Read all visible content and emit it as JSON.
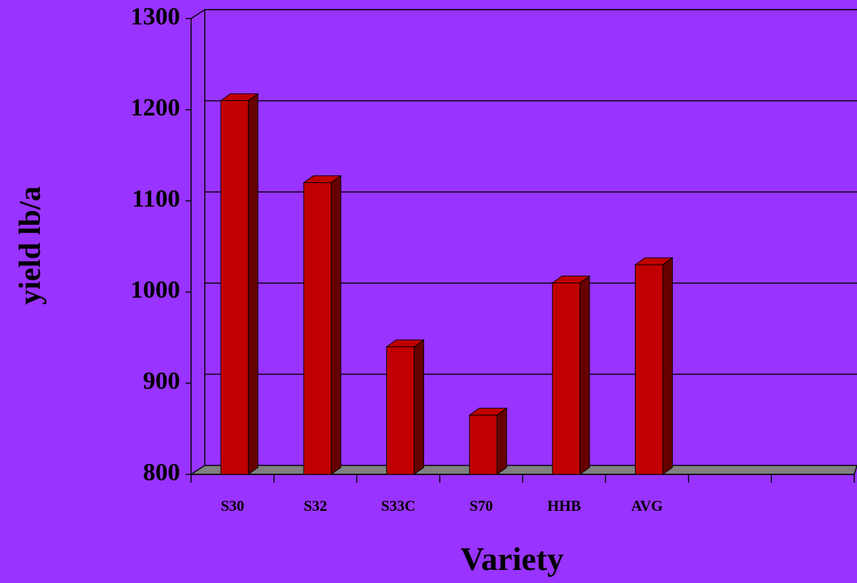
{
  "chart_data": {
    "type": "bar",
    "x_label": "Variety",
    "y_label": "yield lb/a",
    "categories": [
      "S30",
      "S32",
      "S33C",
      "S70",
      "HHB",
      "AVG",
      null,
      null
    ],
    "values": [
      1210,
      1120,
      940,
      865,
      1010,
      1030,
      null,
      null
    ],
    "color": "#c00000",
    "ylim": [
      800,
      1300
    ],
    "yticks": [
      800,
      900,
      1000,
      1100,
      1200,
      1300
    ],
    "grid": true
  }
}
